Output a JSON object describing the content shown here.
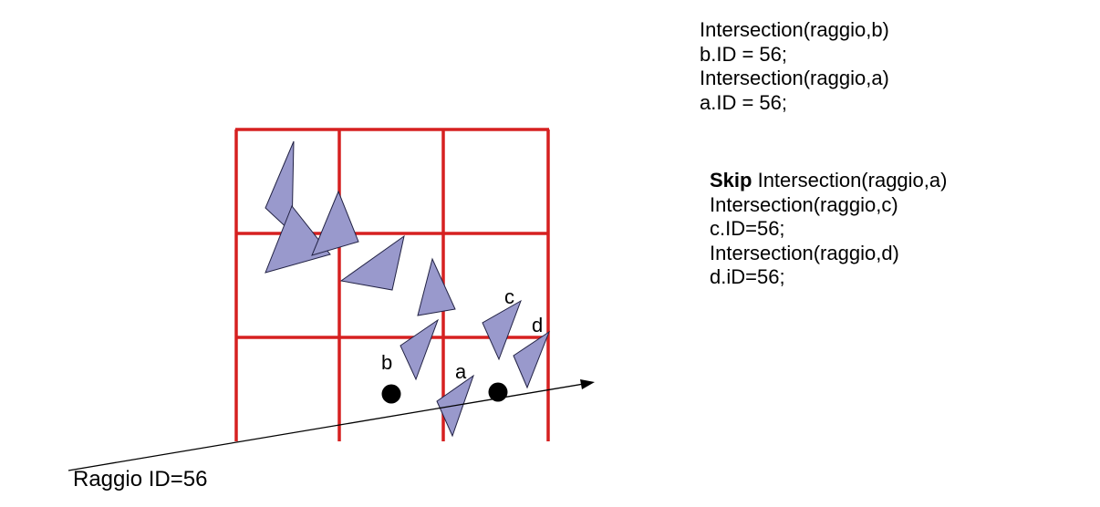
{
  "code_block_1": [
    "Intersection(raggio,b)",
    "b.ID = 56;",
    "Intersection(raggio,a)",
    "a.ID = 56;"
  ],
  "code_block_2": {
    "first_line_keyword": "Skip",
    "first_line_rest": " Intersection(raggio,a)",
    "lines": [
      "Intersection(raggio,c)",
      "c.ID=56;",
      "Intersection(raggio,d)",
      "d.iD=56;"
    ]
  },
  "point_labels": {
    "a": "a",
    "b": "b",
    "c": "c",
    "d": "d"
  },
  "ray_caption": "Raggio ID=56",
  "colors": {
    "grid": "#d62020",
    "triangle_fill": "#9999cc",
    "triangle_stroke": "#222244",
    "ray": "#000000",
    "point": "#000000"
  }
}
